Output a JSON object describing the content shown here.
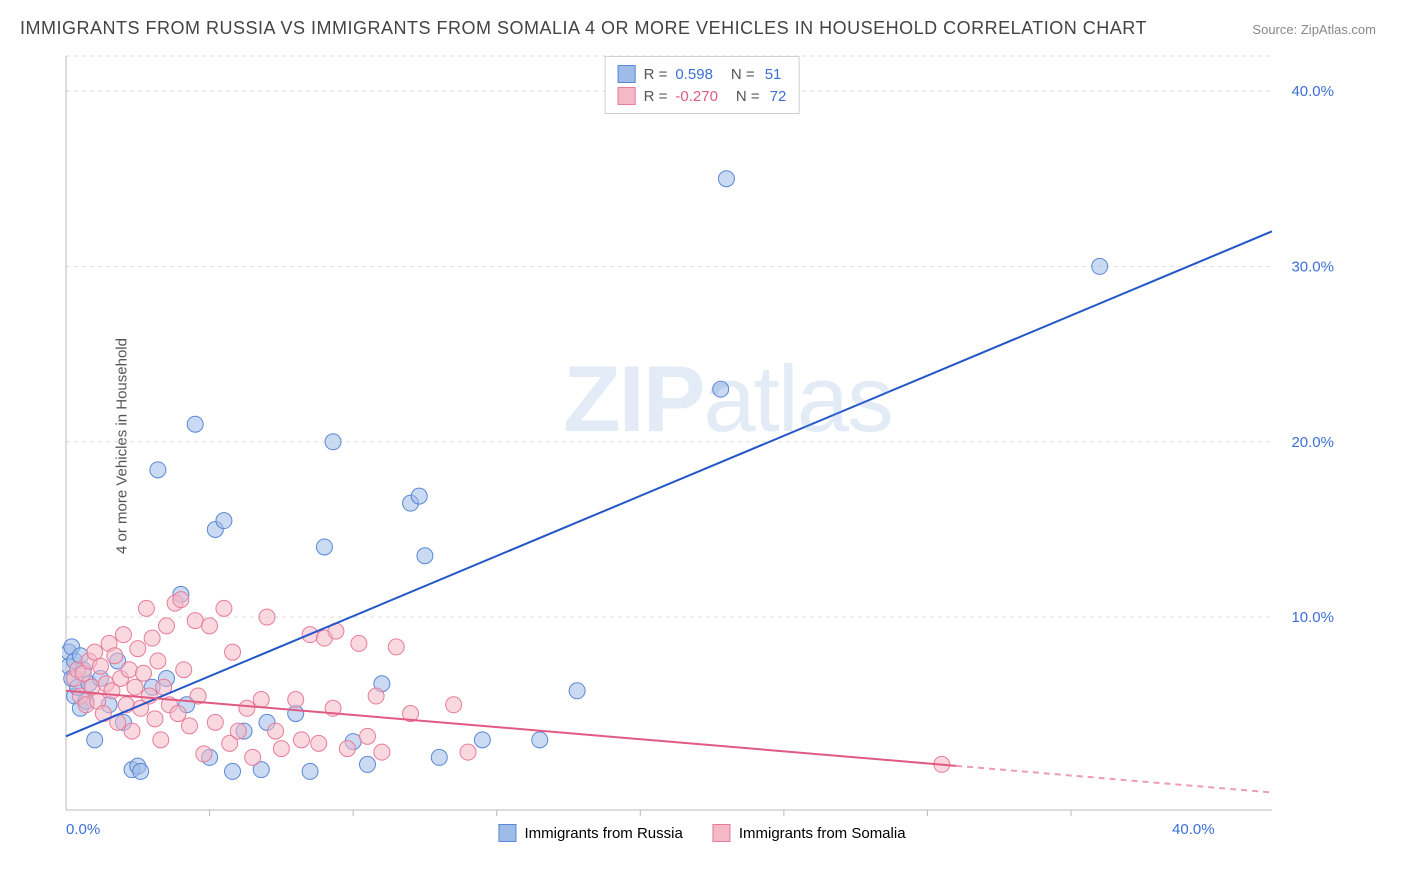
{
  "title": "IMMIGRANTS FROM RUSSIA VS IMMIGRANTS FROM SOMALIA 4 OR MORE VEHICLES IN HOUSEHOLD CORRELATION CHART",
  "source_label": "Source:",
  "source_name": "ZipAtlas.com",
  "ylabel": "4 or more Vehicles in Household",
  "watermark": "ZIPatlas",
  "chart": {
    "type": "scatter",
    "xlim": [
      0,
      42
    ],
    "ylim": [
      -1,
      42
    ],
    "x_ticks": [
      {
        "v": 0,
        "label": "0.0%"
      },
      {
        "v": 40,
        "label": "40.0%"
      }
    ],
    "y_ticks": [
      {
        "v": 10,
        "label": "10.0%"
      },
      {
        "v": 20,
        "label": "20.0%"
      },
      {
        "v": 30,
        "label": "30.0%"
      },
      {
        "v": 40,
        "label": "40.0%"
      }
    ],
    "gridlines_y": [
      10,
      20,
      30,
      40,
      42
    ],
    "x_minor_ticks": [
      5,
      10,
      15,
      20,
      25,
      30,
      35
    ],
    "grid_color": "#dddddd",
    "axis_color": "#bbbbbb",
    "background_color": "#ffffff",
    "tick_font_color_x": "#3d6fd6",
    "tick_font_color_y": "#3d6fd6",
    "tick_fontsize": 15,
    "marker_radius": 8,
    "marker_opacity": 0.55,
    "line_width": 2
  },
  "series": [
    {
      "id": "russia",
      "label": "Immigrants from Russia",
      "color_fill": "#9fbce8",
      "color_stroke": "#5a87d6",
      "r_value": "0.598",
      "r_color": "#3d6fd6",
      "n_value": "51",
      "n_color": "#3d6fd6",
      "trend": {
        "x1": 0,
        "y1": 3.2,
        "x2": 42,
        "y2": 32.0,
        "solid_until_x": 42,
        "color": "#2356c7"
      },
      "points": [
        [
          0.1,
          8.0
        ],
        [
          0.1,
          7.2
        ],
        [
          0.2,
          6.5
        ],
        [
          0.3,
          5.5
        ],
        [
          0.4,
          6.0
        ],
        [
          0.5,
          4.8
        ],
        [
          0.6,
          7.0
        ],
        [
          0.7,
          5.2
        ],
        [
          0.8,
          6.2
        ],
        [
          0.2,
          8.3
        ],
        [
          0.3,
          7.5
        ],
        [
          0.5,
          7.8
        ],
        [
          1.0,
          3.0
        ],
        [
          1.2,
          6.5
        ],
        [
          1.5,
          5.0
        ],
        [
          1.8,
          7.5
        ],
        [
          2.0,
          4.0
        ],
        [
          2.3,
          1.3
        ],
        [
          2.5,
          1.5
        ],
        [
          2.6,
          1.2
        ],
        [
          3.0,
          6.0
        ],
        [
          3.2,
          18.4
        ],
        [
          3.5,
          6.5
        ],
        [
          4.0,
          11.3
        ],
        [
          4.2,
          5.0
        ],
        [
          4.5,
          21.0
        ],
        [
          5.0,
          2.0
        ],
        [
          5.2,
          15.0
        ],
        [
          5.5,
          15.5
        ],
        [
          5.8,
          1.2
        ],
        [
          6.2,
          3.5
        ],
        [
          6.8,
          1.3
        ],
        [
          7.0,
          4.0
        ],
        [
          8.0,
          4.5
        ],
        [
          8.5,
          1.2
        ],
        [
          9.0,
          14.0
        ],
        [
          9.3,
          20.0
        ],
        [
          10.0,
          2.9
        ],
        [
          10.5,
          1.6
        ],
        [
          11.0,
          6.2
        ],
        [
          12.0,
          16.5
        ],
        [
          12.3,
          16.9
        ],
        [
          12.5,
          13.5
        ],
        [
          13.0,
          2.0
        ],
        [
          14.5,
          3.0
        ],
        [
          16.5,
          3.0
        ],
        [
          17.8,
          5.8
        ],
        [
          22.8,
          23.0
        ],
        [
          23.0,
          35.0
        ],
        [
          36.0,
          30.0
        ]
      ]
    },
    {
      "id": "somalia",
      "label": "Immigrants from Somalia",
      "color_fill": "#f4b8c6",
      "color_stroke": "#e77c9a",
      "r_value": "-0.270",
      "r_color": "#e05a82",
      "n_value": "72",
      "n_color": "#3d6fd6",
      "trend": {
        "x1": 0,
        "y1": 5.8,
        "x2": 42,
        "y2": 0.0,
        "solid_until_x": 31,
        "color": "#e05a82"
      },
      "points": [
        [
          0.3,
          6.5
        ],
        [
          0.4,
          7.0
        ],
        [
          0.5,
          5.5
        ],
        [
          0.6,
          6.8
        ],
        [
          0.7,
          5.0
        ],
        [
          0.8,
          7.5
        ],
        [
          0.9,
          6.0
        ],
        [
          1.0,
          8.0
        ],
        [
          1.1,
          5.2
        ],
        [
          1.2,
          7.2
        ],
        [
          1.3,
          4.5
        ],
        [
          1.4,
          6.2
        ],
        [
          1.5,
          8.5
        ],
        [
          1.6,
          5.8
        ],
        [
          1.7,
          7.8
        ],
        [
          1.8,
          4.0
        ],
        [
          1.9,
          6.5
        ],
        [
          2.0,
          9.0
        ],
        [
          2.1,
          5.0
        ],
        [
          2.2,
          7.0
        ],
        [
          2.3,
          3.5
        ],
        [
          2.4,
          6.0
        ],
        [
          2.5,
          8.2
        ],
        [
          2.6,
          4.8
        ],
        [
          2.7,
          6.8
        ],
        [
          2.8,
          10.5
        ],
        [
          2.9,
          5.5
        ],
        [
          3.0,
          8.8
        ],
        [
          3.1,
          4.2
        ],
        [
          3.2,
          7.5
        ],
        [
          3.3,
          3.0
        ],
        [
          3.4,
          6.0
        ],
        [
          3.5,
          9.5
        ],
        [
          3.6,
          5.0
        ],
        [
          3.8,
          10.8
        ],
        [
          3.9,
          4.5
        ],
        [
          4.0,
          11.0
        ],
        [
          4.1,
          7.0
        ],
        [
          4.3,
          3.8
        ],
        [
          4.5,
          9.8
        ],
        [
          4.6,
          5.5
        ],
        [
          4.8,
          2.2
        ],
        [
          5.0,
          9.5
        ],
        [
          5.2,
          4.0
        ],
        [
          5.5,
          10.5
        ],
        [
          5.7,
          2.8
        ],
        [
          5.8,
          8.0
        ],
        [
          6.0,
          3.5
        ],
        [
          6.3,
          4.8
        ],
        [
          6.5,
          2.0
        ],
        [
          6.8,
          5.3
        ],
        [
          7.0,
          10.0
        ],
        [
          7.3,
          3.5
        ],
        [
          7.5,
          2.5
        ],
        [
          8.0,
          5.3
        ],
        [
          8.2,
          3.0
        ],
        [
          8.5,
          9.0
        ],
        [
          8.8,
          2.8
        ],
        [
          9.0,
          8.8
        ],
        [
          9.3,
          4.8
        ],
        [
          9.4,
          9.2
        ],
        [
          9.8,
          2.5
        ],
        [
          10.2,
          8.5
        ],
        [
          10.5,
          3.2
        ],
        [
          10.8,
          5.5
        ],
        [
          11.0,
          2.3
        ],
        [
          11.5,
          8.3
        ],
        [
          12.0,
          4.5
        ],
        [
          13.5,
          5.0
        ],
        [
          14.0,
          2.3
        ],
        [
          30.5,
          1.6
        ]
      ]
    }
  ],
  "legend_top": {
    "r_label": "R =",
    "n_label": "N ="
  }
}
